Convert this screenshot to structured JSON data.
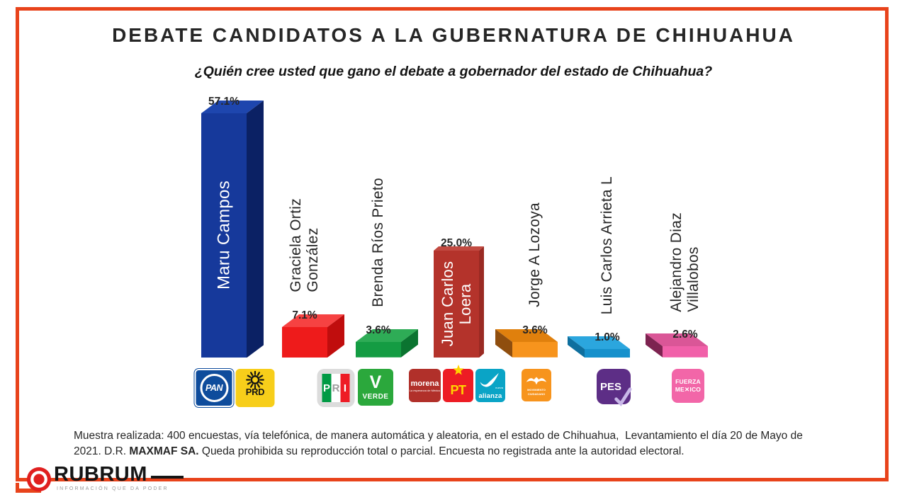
{
  "frame": {
    "border_color": "#E8431B"
  },
  "header": {
    "title": "DEBATE CANDIDATOS A LA GUBERNATURA DE CHIHUAHUA",
    "subtitle": "¿Quién cree usted que gano el debate a gobernador del estado de Chihuahua?"
  },
  "chart_data": {
    "type": "bar",
    "title": "DEBATE CANDIDATOS A LA GUBERNATURA DE CHIHUAHUA",
    "question": "¿Quién cree usted que gano el debate a gobernador del estado de Chihuahua?",
    "unit": "%",
    "ylim": [
      0,
      60
    ],
    "grid": false,
    "legend": false,
    "style": "3d-bars, value labels above bars, rotated candidate names, party logos under bars",
    "categories": [
      "Maru Campos",
      "Graciela Ortiz González",
      "Brenda Ríos Prieto",
      "Juan Carlos Loera",
      "Jorge A Lozoya",
      "Luis Carlos Arrieta L",
      "Alejandro Diaz Villalobos"
    ],
    "values": [
      57.1,
      7.1,
      3.6,
      25.0,
      3.6,
      1.0,
      2.6
    ],
    "bars": [
      {
        "name_lines": [
          "Maru Campos"
        ],
        "value": 57.1,
        "label": "57.1%",
        "label_inside": true,
        "depth": "right",
        "colors": {
          "front": "#16399B",
          "top": "#1E46AE",
          "side": "#0B2164"
        },
        "parties": [
          "pan",
          "prd"
        ]
      },
      {
        "name_lines": [
          "Graciela Ortiz",
          "González"
        ],
        "value": 7.1,
        "label": "7.1%",
        "label_inside": false,
        "depth": "right",
        "colors": {
          "front": "#EE1B1B",
          "top": "#F64242",
          "side": "#C00D0D"
        },
        "parties": [
          "pri"
        ]
      },
      {
        "name_lines": [
          "Brenda Ríos Prieto"
        ],
        "value": 3.6,
        "label": "3.6%",
        "label_inside": false,
        "depth": "right",
        "colors": {
          "front": "#149C43",
          "top": "#2EAC56",
          "side": "#0B7430"
        },
        "parties": [
          "verde"
        ]
      },
      {
        "name_lines": [
          "Juan Carlos",
          "Loera"
        ],
        "value": 25.0,
        "label": "25.0%",
        "label_inside": true,
        "depth": "center",
        "colors": {
          "front": "#B4332B",
          "top": "#C24A41",
          "side": "#9A2A23"
        },
        "parties": [
          "morena",
          "pt",
          "alianza"
        ]
      },
      {
        "name_lines": [
          "Jorge A Lozoya"
        ],
        "value": 3.6,
        "label": "3.6%",
        "label_inside": false,
        "depth": "left",
        "colors": {
          "front": "#F7941D",
          "top": "#E0800D",
          "side": "#8F4E0E"
        },
        "parties": [
          "mc"
        ]
      },
      {
        "name_lines": [
          "Luis Carlos Arrieta L"
        ],
        "value": 1.0,
        "label": "1.0%",
        "label_inside": false,
        "depth": "left",
        "colors": {
          "front": "#1691CC",
          "top": "#2BA6DE",
          "side": "#0E6F9E"
        },
        "parties": [
          "pes"
        ]
      },
      {
        "name_lines": [
          "Alejandro Diaz",
          "Villalobos"
        ],
        "value": 2.6,
        "label": "2.6%",
        "label_inside": false,
        "depth": "left",
        "colors": {
          "front": "#F160A9",
          "top": "#DA5697",
          "side": "#7D2350"
        },
        "parties": [
          "fuerza"
        ]
      }
    ]
  },
  "parties": {
    "pan": {
      "label": "PAN",
      "bg": "#0E4C9C",
      "fg": "#FFFFFF"
    },
    "prd": {
      "label": "PRD",
      "bg": "#F7CE1A",
      "fg": "#141414"
    },
    "pri": {
      "label": "PRI",
      "bg": "#DCDCDC",
      "stripes": [
        "#009A44",
        "#FFFFFF",
        "#EE1C25"
      ],
      "letter_colors": [
        "#FFFFFF",
        "#9C9C9C",
        "#FFFFFF"
      ]
    },
    "verde": {
      "label": "VERDE",
      "bg": "#2BA83C",
      "fg": "#FFFFFF"
    },
    "morena": {
      "label": "morena",
      "tagline": "La esperanza de México",
      "bg": "#B1302A",
      "fg": "#FFFFFF"
    },
    "pt": {
      "label": "PT",
      "bg": "#ED1C24",
      "fg": "#FFD400"
    },
    "alianza": {
      "label": "alianza",
      "tagline": "nueva",
      "bg": "#0AA4C6",
      "fg": "#FFFFFF"
    },
    "mc": {
      "label": "MOVIMIENTO CIUDADANO",
      "bg": "#F7941D",
      "fg": "#FFFFFF"
    },
    "pes": {
      "label": "PES",
      "bg": "#5D2E86",
      "fg": "#FFFFFF",
      "check": "#C9B8E8"
    },
    "fuerza": {
      "label_lines": [
        "FUERZA",
        "ME✕ICO"
      ],
      "bg": "#F266A8",
      "fg": "#FFFFFF"
    }
  },
  "footer": {
    "pre": "Muestra realizada: 400 encuestas, vía telefónica, de manera automática y aleatoria, en el estado de Chihuahua,  Levantamiento el día 20 de Mayo de 2021. D.R. ",
    "bold": "MAXMAF SA.",
    "post": " Queda prohibida su reproducción total o parcial. Encuesta no registrada ante la autoridad electoral."
  },
  "brand": {
    "name": "RUBRUM",
    "tagline": "INFORMACIÓN QUE DA PODER",
    "accent": "#E01F1F"
  }
}
